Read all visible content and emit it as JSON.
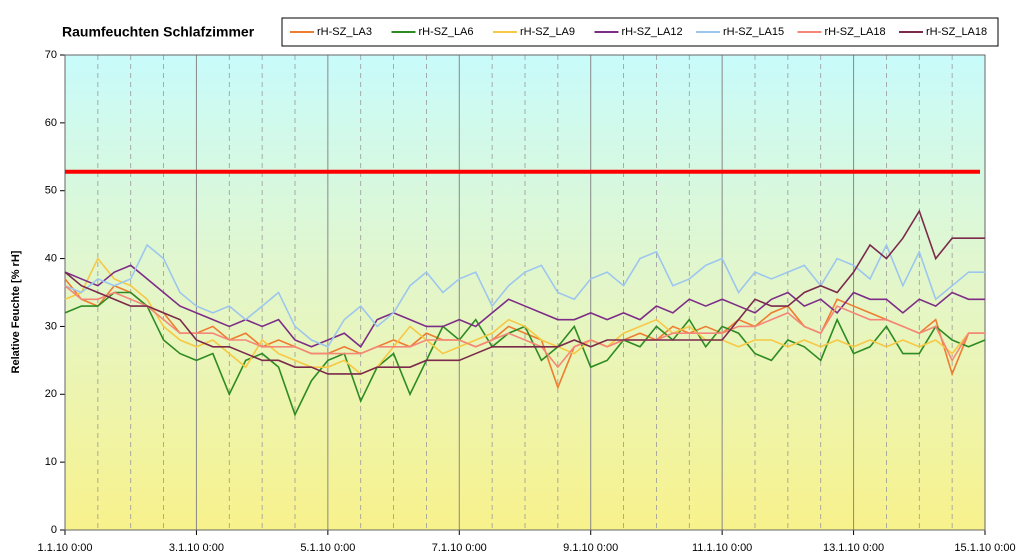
{
  "chart_data": {
    "type": "line",
    "title": "Raumfeuchten Schlafzimmer",
    "y_label": "Relative Feuchte [% rH]",
    "x": [
      "1.1.10 0:00",
      "1.1.10 6:00",
      "1.1.10 12:00",
      "1.1.10 18:00",
      "2.1.10 0:00",
      "2.1.10 6:00",
      "2.1.10 12:00",
      "2.1.10 18:00",
      "3.1.10 0:00",
      "3.1.10 6:00",
      "3.1.10 12:00",
      "3.1.10 18:00",
      "4.1.10 0:00",
      "4.1.10 6:00",
      "4.1.10 12:00",
      "4.1.10 18:00",
      "5.1.10 0:00",
      "5.1.10 6:00",
      "5.1.10 12:00",
      "5.1.10 18:00",
      "6.1.10 0:00",
      "6.1.10 6:00",
      "6.1.10 12:00",
      "6.1.10 18:00",
      "7.1.10 0:00",
      "7.1.10 6:00",
      "7.1.10 12:00",
      "7.1.10 18:00",
      "8.1.10 0:00",
      "8.1.10 6:00",
      "8.1.10 12:00",
      "8.1.10 18:00",
      "9.1.10 0:00",
      "9.1.10 6:00",
      "9.1.10 12:00",
      "9.1.10 18:00",
      "10.1.10 0:00",
      "10.1.10 6:00",
      "10.1.10 12:00",
      "10.1.10 18:00",
      "11.1.10 0:00",
      "11.1.10 6:00",
      "11.1.10 12:00",
      "11.1.10 18:00",
      "12.1.10 0:00",
      "12.1.10 6:00",
      "12.1.10 12:00",
      "12.1.10 18:00",
      "13.1.10 0:00",
      "13.1.10 6:00",
      "13.1.10 12:00",
      "13.1.10 18:00",
      "14.1.10 0:00",
      "14.1.10 6:00",
      "14.1.10 12:00",
      "14.1.10 18:00",
      "15.1.10 0:00"
    ],
    "xlim": [
      "1.1.10 0:00",
      "15.1.10 0:00"
    ],
    "xticks": [
      "1.1.10 0:00",
      "3.1.10 0:00",
      "5.1.10 0:00",
      "7.1.10 0:00",
      "9.1.10 0:00",
      "11.1.10 0:00",
      "13.1.10 0:00",
      "15.1.10 0:00"
    ],
    "ylim": [
      0,
      70
    ],
    "yticks": [
      0,
      10,
      20,
      30,
      40,
      50,
      60,
      70
    ],
    "reference_line": {
      "value": 52.8,
      "color": "#ff0000"
    },
    "series": [
      {
        "name": "rH-SZ_LA3",
        "color": "#ee7d31",
        "values": [
          37,
          34,
          33,
          36,
          35,
          33,
          32,
          29,
          29,
          30,
          28,
          29,
          27,
          28,
          27,
          26,
          26,
          27,
          26,
          27,
          28,
          27,
          29,
          28,
          28,
          27,
          28,
          30,
          29,
          28,
          21,
          27,
          28,
          27,
          28,
          29,
          28,
          30,
          29,
          30,
          29,
          31,
          30,
          32,
          33,
          30,
          29,
          34,
          33,
          32,
          31,
          30,
          29,
          31,
          23,
          29,
          29
        ]
      },
      {
        "name": "rH-SZ_LA6",
        "color": "#2e8b22",
        "values": [
          32,
          33,
          33,
          35,
          35,
          33,
          28,
          26,
          25,
          26,
          20,
          25,
          26,
          24,
          17,
          22,
          25,
          26,
          19,
          24,
          26,
          20,
          25,
          30,
          28,
          31,
          27,
          29,
          30,
          25,
          27,
          30,
          24,
          25,
          28,
          27,
          30,
          28,
          31,
          27,
          30,
          29,
          26,
          25,
          28,
          27,
          25,
          31,
          26,
          27,
          30,
          26,
          26,
          30,
          28,
          27,
          28
        ]
      },
      {
        "name": "rH-SZ_LA9",
        "color": "#f7c844",
        "values": [
          34,
          35,
          40,
          37,
          36,
          34,
          30,
          28,
          27,
          28,
          26,
          24,
          28,
          26,
          25,
          24,
          24,
          25,
          23,
          24,
          27,
          30,
          28,
          26,
          27,
          28,
          29,
          31,
          30,
          28,
          27,
          26,
          28,
          27,
          29,
          30,
          31,
          29,
          30,
          28,
          28,
          27,
          28,
          28,
          27,
          28,
          27,
          28,
          27,
          28,
          27,
          28,
          27,
          28,
          26,
          29,
          29
        ]
      },
      {
        "name": "rH-SZ_LA12",
        "color": "#7d2d86",
        "values": [
          38,
          37,
          36,
          38,
          39,
          37,
          35,
          33,
          32,
          31,
          30,
          31,
          30,
          31,
          28,
          27,
          28,
          29,
          27,
          31,
          32,
          31,
          30,
          30,
          31,
          30,
          32,
          34,
          33,
          32,
          31,
          31,
          32,
          31,
          32,
          31,
          33,
          32,
          34,
          33,
          34,
          33,
          32,
          34,
          35,
          33,
          34,
          32,
          35,
          34,
          34,
          32,
          34,
          33,
          35,
          34,
          34
        ]
      },
      {
        "name": "rH-SZ_LA15",
        "color": "#9dc6ee",
        "values": [
          36,
          35,
          37,
          36,
          37,
          42,
          40,
          35,
          33,
          32,
          33,
          31,
          33,
          35,
          30,
          28,
          27,
          31,
          33,
          30,
          32,
          36,
          38,
          35,
          37,
          38,
          33,
          36,
          38,
          39,
          35,
          34,
          37,
          38,
          36,
          40,
          41,
          36,
          37,
          39,
          40,
          35,
          38,
          37,
          38,
          39,
          36,
          40,
          39,
          37,
          42,
          36,
          41,
          34,
          36,
          38,
          38
        ]
      },
      {
        "name": "rH-SZ_LA18",
        "color": "#f4877a",
        "values": [
          36,
          34,
          34,
          35,
          34,
          33,
          31,
          29,
          29,
          29,
          28,
          28,
          27,
          27,
          27,
          26,
          26,
          26,
          26,
          27,
          27,
          27,
          28,
          28,
          28,
          27,
          28,
          29,
          28,
          27,
          24,
          27,
          28,
          27,
          28,
          28,
          28,
          29,
          29,
          29,
          29,
          30,
          30,
          31,
          32,
          30,
          29,
          33,
          32,
          31,
          31,
          30,
          29,
          30,
          25,
          29,
          29
        ]
      },
      {
        "name": "rH-SZ_LA18",
        "color": "#7b2a4c",
        "values": [
          38,
          36,
          35,
          34,
          33,
          33,
          32,
          31,
          28,
          27,
          27,
          26,
          25,
          25,
          24,
          24,
          23,
          23,
          23,
          24,
          24,
          24,
          25,
          25,
          25,
          26,
          27,
          27,
          27,
          27,
          27,
          28,
          27,
          28,
          28,
          28,
          28,
          28,
          28,
          28,
          28,
          31,
          34,
          33,
          33,
          35,
          36,
          35,
          38,
          42,
          40,
          43,
          47,
          40,
          43,
          43,
          43
        ]
      }
    ]
  }
}
